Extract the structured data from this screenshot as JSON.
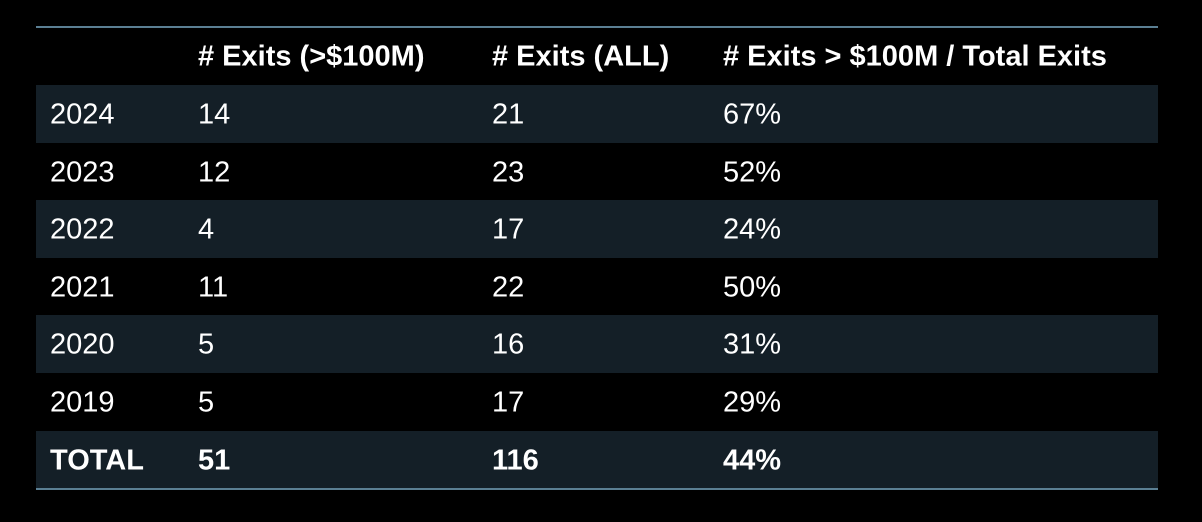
{
  "chart_data": {
    "type": "table",
    "columns": [
      "",
      "# Exits (>$100M)",
      "# Exits (ALL)",
      "# Exits > $100M / Total Exits"
    ],
    "rows": [
      [
        "2024",
        "14",
        "21",
        "67%"
      ],
      [
        "2023",
        "12",
        "23",
        "52%"
      ],
      [
        "2022",
        "4",
        "17",
        "24%"
      ],
      [
        "2021",
        "11",
        "22",
        "50%"
      ],
      [
        "2020",
        "5",
        "16",
        "31%"
      ],
      [
        "2019",
        "5",
        "17",
        "29%"
      ]
    ],
    "total_row": [
      "TOTAL",
      "51",
      "116",
      "44%"
    ]
  },
  "colors": {
    "background": "#000000",
    "row_shade": "#141f27",
    "rule": "#5b7f93",
    "text": "#ffffff"
  }
}
